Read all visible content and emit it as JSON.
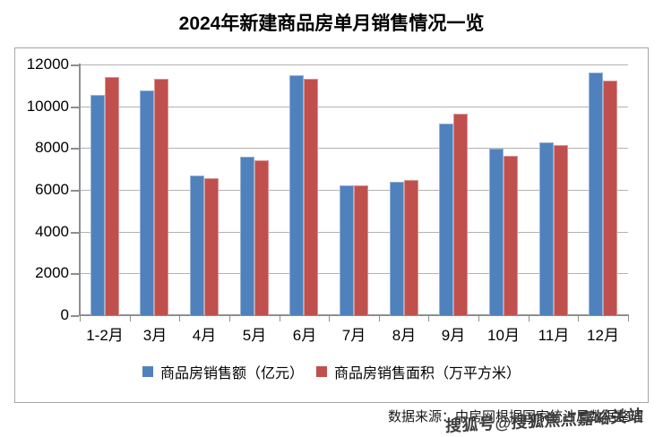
{
  "page": {
    "title": "2024年新建商品房单月销售情况一览",
    "source_text": "数据来源：中房网根据国家统计局数据整理",
    "watermark": "搜狐号@搜狐焦点嘉峪关站"
  },
  "chart_data": {
    "type": "bar",
    "title": "2024年新建商品房单月销售情况一览",
    "categories": [
      "1-2月",
      "3月",
      "4月",
      "5月",
      "6月",
      "7月",
      "8月",
      "9月",
      "10月",
      "11月",
      "12月"
    ],
    "series": [
      {
        "key": "sales-amount",
        "name": "商品房销售额（亿元）",
        "color": "#4F81BD",
        "border_color": "#95B3D7",
        "values": [
          10550,
          10750,
          6670,
          7600,
          11480,
          6200,
          6400,
          9150,
          7960,
          8250,
          11630
        ]
      },
      {
        "key": "sales-area",
        "name": "商品房销售面积（万平方米）",
        "color": "#C0504D",
        "border_color": "#D99694",
        "values": [
          11400,
          11300,
          6570,
          7410,
          11310,
          6230,
          6450,
          9650,
          7640,
          8140,
          11240
        ]
      }
    ],
    "xlabel": "",
    "ylabel": "",
    "ylim": [
      0,
      12000
    ],
    "ytick_step": 2000,
    "grid": true,
    "legend_position": "bottom",
    "axis_color": "#8e8e8e",
    "gridline_color": "#b2b2b2"
  }
}
